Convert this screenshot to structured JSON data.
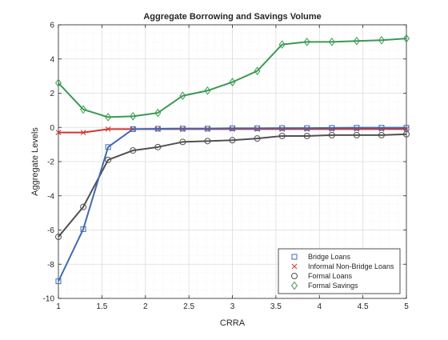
{
  "chart_data": {
    "type": "line",
    "title": "Aggregate Borrowing and Savings Volume",
    "xlabel": "CRRA",
    "ylabel": "Aggregate Levels",
    "xlim": [
      1,
      5
    ],
    "ylim": [
      -10,
      6
    ],
    "xticks": [
      1,
      1.5,
      2,
      2.5,
      3,
      3.5,
      4,
      4.5,
      5
    ],
    "yticks": [
      -10,
      -8,
      -6,
      -4,
      -2,
      0,
      2,
      4,
      6
    ],
    "grid": true,
    "legend_position": "bottom-right",
    "x": [
      1.0,
      1.2857,
      1.5714,
      1.8571,
      2.1429,
      2.4286,
      2.7143,
      3.0,
      3.2857,
      3.5714,
      3.8571,
      4.1429,
      4.4286,
      4.7143,
      5.0
    ],
    "series": [
      {
        "name": "Bridge Loans",
        "color": "#4169b0",
        "marker": "square",
        "values": [
          -9.0,
          -5.95,
          -1.15,
          -0.1,
          -0.08,
          -0.07,
          -0.07,
          -0.05,
          -0.05,
          -0.04,
          -0.04,
          -0.03,
          -0.02,
          -0.02,
          -0.02
        ]
      },
      {
        "name": "Informal Non-Bridge Loans",
        "color": "#d0352f",
        "marker": "x",
        "values": [
          -0.3,
          -0.3,
          -0.1,
          -0.1,
          -0.1,
          -0.1,
          -0.1,
          -0.1,
          -0.1,
          -0.1,
          -0.1,
          -0.1,
          -0.1,
          -0.1,
          -0.1
        ]
      },
      {
        "name": "Formal Loans",
        "color": "#505050",
        "marker": "circle",
        "values": [
          -6.4,
          -4.65,
          -1.9,
          -1.35,
          -1.15,
          -0.85,
          -0.8,
          -0.75,
          -0.65,
          -0.5,
          -0.5,
          -0.45,
          -0.45,
          -0.45,
          -0.4
        ]
      },
      {
        "name": "Formal Savings",
        "color": "#3a9a52",
        "marker": "diamond",
        "values": [
          2.6,
          1.05,
          0.6,
          0.65,
          0.85,
          1.85,
          2.15,
          2.65,
          3.3,
          4.85,
          5.0,
          5.0,
          5.05,
          5.1,
          5.2
        ]
      }
    ]
  }
}
